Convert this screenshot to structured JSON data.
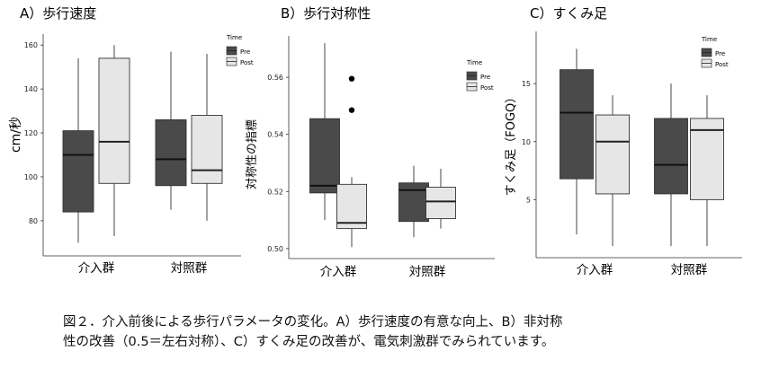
{
  "caption": {
    "line1": "図２．介入前後による歩行パラメータの変化。A）歩行速度の有意な向上、B）非対称",
    "line2": "性の改善（0.5＝左右対称）、C）すくみ足の改善が、電気刺激群でみられています。"
  },
  "chart_data": [
    {
      "type": "box",
      "title": "A）歩行速度",
      "ylabel": "cm/秒",
      "xlabel": "",
      "categories": [
        "介入群",
        "対照群"
      ],
      "ylim": [
        64,
        165
      ],
      "yticks": [
        "80",
        "100",
        "120",
        "140",
        "160"
      ],
      "legend": {
        "title": "Time",
        "position": "top-right",
        "entries": [
          "Pre",
          "Post"
        ]
      },
      "series": [
        {
          "name": "Pre",
          "color": "#4a4a4a",
          "boxes": [
            {
              "min": 70,
              "q1": 84,
              "median": 110,
              "q3": 121,
              "max": 154,
              "outliers": []
            },
            {
              "min": 85,
              "q1": 96,
              "median": 108,
              "q3": 126,
              "max": 157,
              "outliers": []
            }
          ]
        },
        {
          "name": "Post",
          "color": "#e6e6e6",
          "boxes": [
            {
              "min": 73,
              "q1": 97,
              "median": 116,
              "q3": 154,
              "max": 160,
              "outliers": []
            },
            {
              "min": 80,
              "q1": 97,
              "median": 103,
              "q3": 128,
              "max": 156,
              "outliers": []
            }
          ]
        }
      ]
    },
    {
      "type": "box",
      "title": "B）歩行対称性",
      "ylabel": "対称性の指標",
      "xlabel": "",
      "categories": [
        "介入群",
        "対照群"
      ],
      "ylim": [
        0.4965,
        0.5745
      ],
      "yticks": [
        "0.50",
        "0.52",
        "0.54",
        "0.56"
      ],
      "legend": {
        "title": "Time",
        "position": "top-right",
        "entries": [
          "Pre",
          "Post"
        ]
      },
      "series": [
        {
          "name": "Pre",
          "color": "#4a4a4a",
          "boxes": [
            {
              "min": 0.51,
              "q1": 0.5195,
              "median": 0.522,
              "q3": 0.5455,
              "max": 0.572,
              "outliers": []
            },
            {
              "min": 0.504,
              "q1": 0.5095,
              "median": 0.5205,
              "q3": 0.523,
              "max": 0.529,
              "outliers": []
            }
          ]
        },
        {
          "name": "Post",
          "color": "#e6e6e6",
          "boxes": [
            {
              "min": 0.5005,
              "q1": 0.507,
              "median": 0.509,
              "q3": 0.5225,
              "max": 0.525,
              "outliers": [
                0.5595,
                0.5485
              ]
            },
            {
              "min": 0.507,
              "q1": 0.5105,
              "median": 0.5165,
              "q3": 0.5215,
              "max": 0.528,
              "outliers": []
            }
          ]
        }
      ]
    },
    {
      "type": "box",
      "title": "C）すくみ足",
      "ylabel": "すくみ足（FOGQ）",
      "xlabel": "",
      "categories": [
        "介入群",
        "対照群"
      ],
      "ylim": [
        0,
        19.5
      ],
      "yticks": [
        "5",
        "10",
        "15"
      ],
      "legend": {
        "title": "Time",
        "position": "top-right",
        "entries": [
          "Pre",
          "Post"
        ]
      },
      "series": [
        {
          "name": "Pre",
          "color": "#4a4a4a",
          "boxes": [
            {
              "min": 2,
              "q1": 6.8,
              "median": 12.5,
              "q3": 16.2,
              "max": 18,
              "outliers": []
            },
            {
              "min": 1,
              "q1": 5.5,
              "median": 8,
              "q3": 12,
              "max": 15,
              "outliers": []
            }
          ]
        },
        {
          "name": "Post",
          "color": "#e6e6e6",
          "boxes": [
            {
              "min": 1,
              "q1": 5.5,
              "median": 10,
              "q3": 12.3,
              "max": 14,
              "outliers": []
            },
            {
              "min": 1,
              "q1": 5,
              "median": 11,
              "q3": 12,
              "max": 14,
              "outliers": []
            }
          ]
        }
      ]
    }
  ]
}
